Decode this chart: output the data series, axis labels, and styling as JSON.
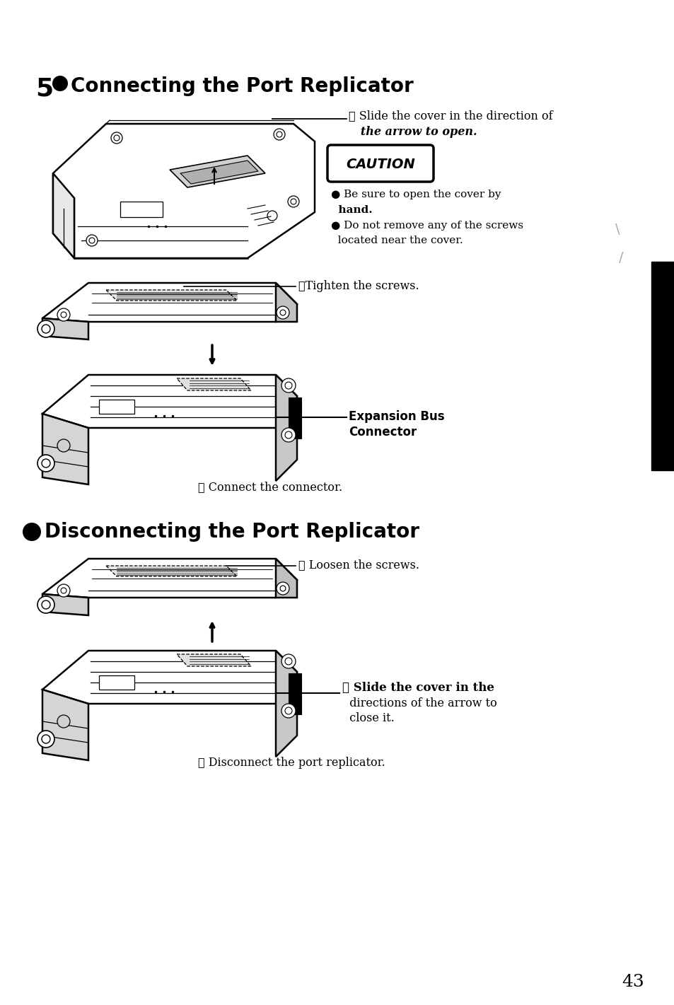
{
  "background_color": "#ffffff",
  "page_number": "43",
  "black_bar_color": "#000000",
  "section1_number": "5",
  "section1_title": " Connecting the Port Replicator",
  "section2_title": " Disconnecting the Port Replicator",
  "step1_line1": "① Slide the cover in the direction of",
  "step1_line2": "   the arrow to open.",
  "caution_text": "CAUTION",
  "bullet1_line1": "● Be sure to open the cover by",
  "bullet1_line2": "  hand.",
  "bullet2_line1": "● Do not remove any of the screws",
  "bullet2_line2": "  located near the cover.",
  "step3_connect": "③Tighten the screws.",
  "expansion_bus_line1": "Expansion Bus",
  "expansion_bus_line2": "Connector",
  "step2_connect": "② Connect the connector.",
  "step1_disconnect": "① Loosen the screws.",
  "step3_disconnect_line1": "③ Slide the cover in the",
  "step3_disconnect_line2": "  directions of the arrow to",
  "step3_disconnect_line3": "  close it.",
  "step2_disconnect": "② Disconnect the port replicator.",
  "fig_width": 9.54,
  "fig_height": 14.21,
  "dpi": 100
}
